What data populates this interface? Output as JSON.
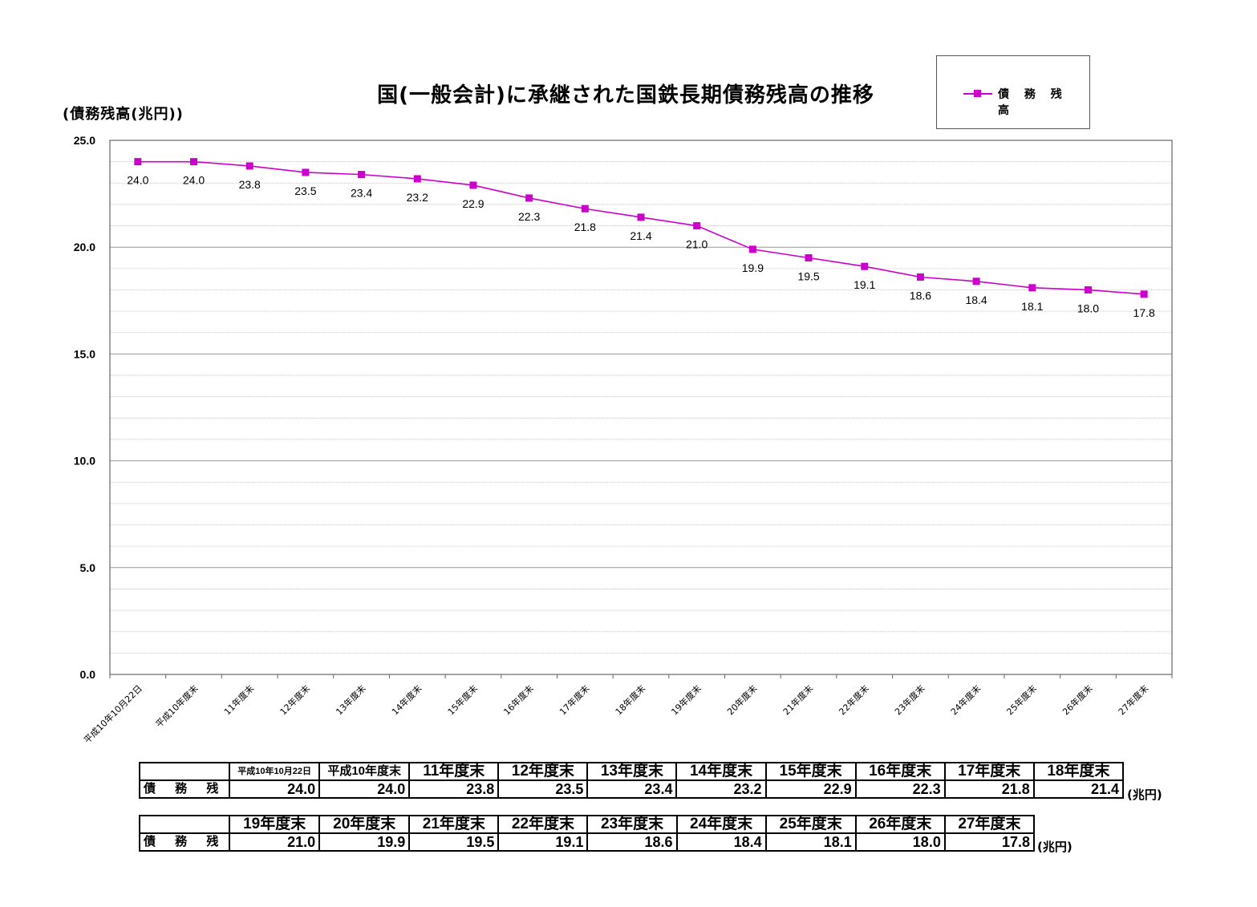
{
  "chart_data": {
    "type": "line",
    "title": "国(一般会計)に承継された国鉄長期債務残高の推移",
    "ylabel": "(債務残高(兆円))",
    "ylim": [
      0,
      25
    ],
    "yticks": [
      "0.0",
      "5.0",
      "10.0",
      "15.0",
      "20.0",
      "25.0"
    ],
    "grid": true,
    "legend_position": "top-right",
    "categories": [
      "平成10年10月22日",
      "平成10年度末",
      "11年度末",
      "12年度末",
      "13年度末",
      "14年度末",
      "15年度末",
      "16年度末",
      "17年度末",
      "18年度末",
      "19年度末",
      "20年度末",
      "21年度末",
      "22年度末",
      "23年度末",
      "24年度末",
      "25年度末",
      "26年度末",
      "27年度末"
    ],
    "series": [
      {
        "name": "債 務 残 高",
        "color": "#cc00cc",
        "values": [
          24.0,
          24.0,
          23.8,
          23.5,
          23.4,
          23.2,
          22.9,
          22.3,
          21.8,
          21.4,
          21.0,
          19.9,
          19.5,
          19.1,
          18.6,
          18.4,
          18.1,
          18.0,
          17.8
        ],
        "labels": [
          "24.0",
          "24.0",
          "23.8",
          "23.5",
          "23.4",
          "23.2",
          "22.9",
          "22.3",
          "21.8",
          "21.4",
          "21.0",
          "19.9",
          "19.5",
          "19.1",
          "18.6",
          "18.4",
          "18.1",
          "18.0",
          "17.8"
        ]
      }
    ]
  },
  "table1": {
    "headers": [
      "平成10年10月22日",
      "平成10年度末",
      "11年度末",
      "12年度末",
      "13年度末",
      "14年度末",
      "15年度末",
      "16年度末",
      "17年度末",
      "18年度末"
    ],
    "row_label": "債 務 残 高",
    "values": [
      "24.0",
      "24.0",
      "23.8",
      "23.5",
      "23.4",
      "23.2",
      "22.9",
      "22.3",
      "21.8",
      "21.4"
    ],
    "unit": "(兆円)"
  },
  "table2": {
    "headers": [
      "19年度末",
      "20年度末",
      "21年度末",
      "22年度末",
      "23年度末",
      "24年度末",
      "25年度末",
      "26年度末",
      "27年度末"
    ],
    "row_label": "債 務 残 高",
    "values": [
      "21.0",
      "19.9",
      "19.5",
      "19.1",
      "18.6",
      "18.4",
      "18.1",
      "18.0",
      "17.8"
    ],
    "unit": "(兆円)"
  }
}
